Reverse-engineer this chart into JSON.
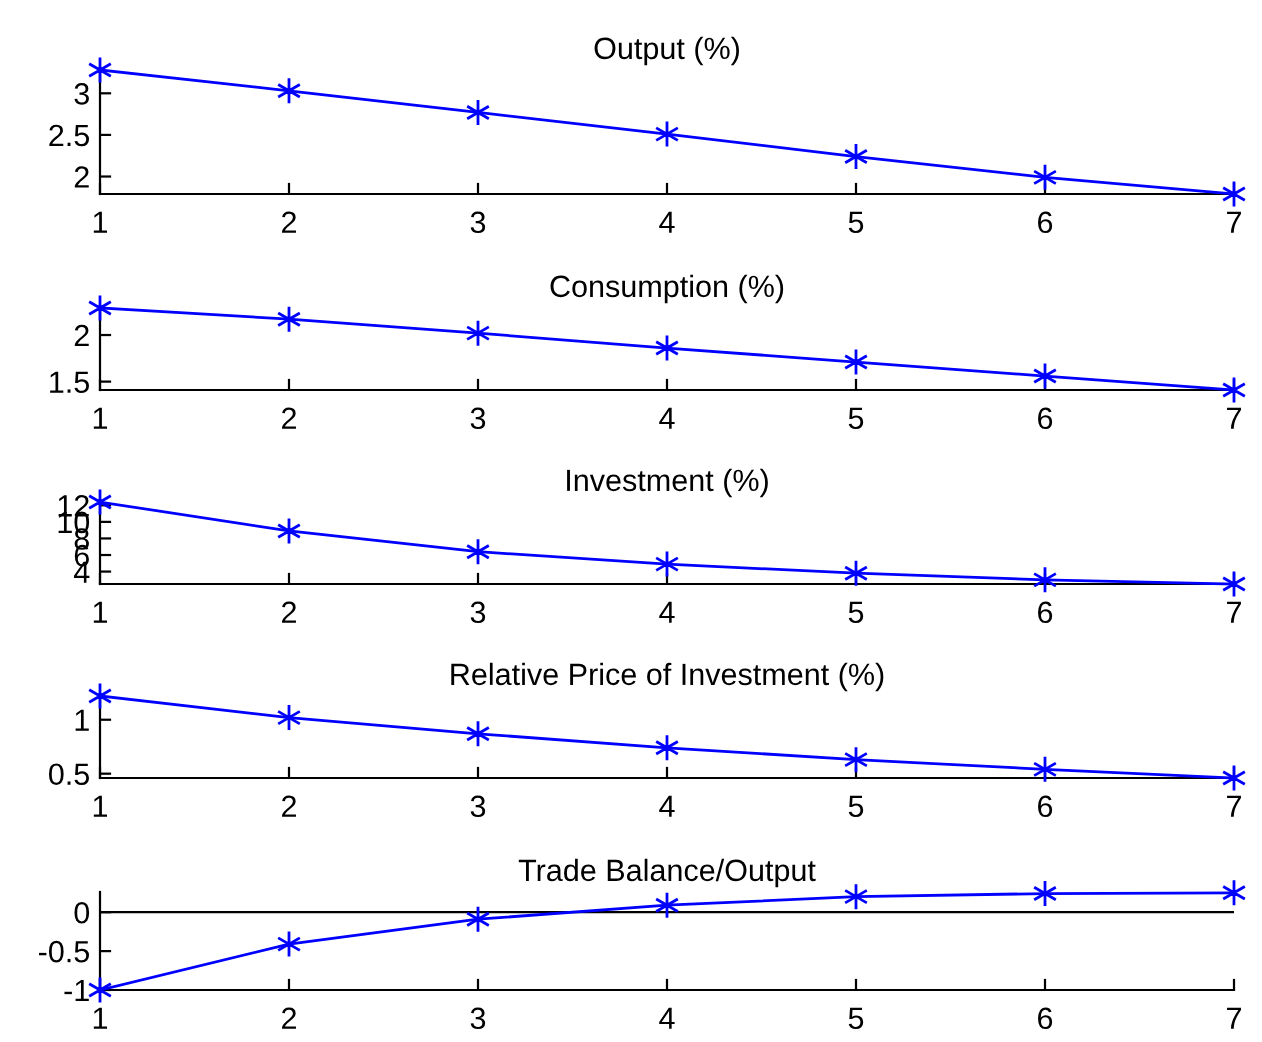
{
  "chart_data": [
    {
      "type": "line",
      "title": "Output (%)",
      "x": [
        1,
        2,
        3,
        4,
        5,
        6,
        7
      ],
      "xlim": [
        1,
        7
      ],
      "xticks": [
        1,
        2,
        3,
        4,
        5,
        6,
        7
      ],
      "ylim": [
        1.79,
        3.28
      ],
      "yticks": [
        2,
        2.5,
        3
      ],
      "marker": "cross",
      "line_style": "solid",
      "grid": false,
      "legend": false,
      "series": [
        {
          "color": "#0000ff",
          "values": [
            3.28,
            3.03,
            2.77,
            2.51,
            2.24,
            1.99,
            1.79
          ]
        }
      ]
    },
    {
      "type": "line",
      "title": "Consumption (%)",
      "x": [
        1,
        2,
        3,
        4,
        5,
        6,
        7
      ],
      "xlim": [
        1,
        7
      ],
      "xticks": [
        1,
        2,
        3,
        4,
        5,
        6,
        7
      ],
      "ylim": [
        1.41,
        2.29
      ],
      "yticks": [
        1.5,
        2
      ],
      "marker": "cross",
      "line_style": "solid",
      "grid": false,
      "legend": false,
      "series": [
        {
          "color": "#0000ff",
          "values": [
            2.29,
            2.17,
            2.02,
            1.86,
            1.71,
            1.56,
            1.41
          ]
        }
      ]
    },
    {
      "type": "line",
      "title": "Investment (%)",
      "x": [
        1,
        2,
        3,
        4,
        5,
        6,
        7
      ],
      "xlim": [
        1,
        7
      ],
      "xticks": [
        1,
        2,
        3,
        4,
        5,
        6,
        7
      ],
      "ylim": [
        2.5,
        12.4
      ],
      "yticks": [
        4,
        6,
        8,
        10,
        12
      ],
      "marker": "cross",
      "line_style": "solid",
      "grid": false,
      "legend": false,
      "series": [
        {
          "color": "#0000ff",
          "values": [
            12.4,
            8.9,
            6.4,
            4.9,
            3.8,
            3.0,
            2.5
          ]
        }
      ]
    },
    {
      "type": "line",
      "title": "Relative Price of Investment (%)",
      "x": [
        1,
        2,
        3,
        4,
        5,
        6,
        7
      ],
      "xlim": [
        1,
        7
      ],
      "xticks": [
        1,
        2,
        3,
        4,
        5,
        6,
        7
      ],
      "ylim": [
        0.46,
        1.22
      ],
      "yticks": [
        0.5,
        1
      ],
      "marker": "cross",
      "line_style": "solid",
      "grid": false,
      "legend": false,
      "series": [
        {
          "color": "#0000ff",
          "values": [
            1.22,
            1.02,
            0.87,
            0.74,
            0.63,
            0.54,
            0.46
          ]
        }
      ]
    },
    {
      "type": "line",
      "title": "Trade Balance/Output",
      "x": [
        1,
        2,
        3,
        4,
        5,
        6,
        7
      ],
      "xlim": [
        1,
        7
      ],
      "xticks": [
        1,
        2,
        3,
        4,
        5,
        6,
        7
      ],
      "ylim": [
        -1,
        0.26
      ],
      "yticks": [
        -1,
        -0.5,
        0
      ],
      "marker": "cross",
      "line_style": "solid",
      "grid": false,
      "legend": false,
      "ref_lines": [
        {
          "axis": "y",
          "value": 0,
          "color": "#000000",
          "line_style": "solid"
        }
      ],
      "series": [
        {
          "color": "#0000ff",
          "values": [
            -1,
            -0.41,
            -0.09,
            0.09,
            0.2,
            0.24,
            0.25
          ]
        }
      ]
    }
  ]
}
